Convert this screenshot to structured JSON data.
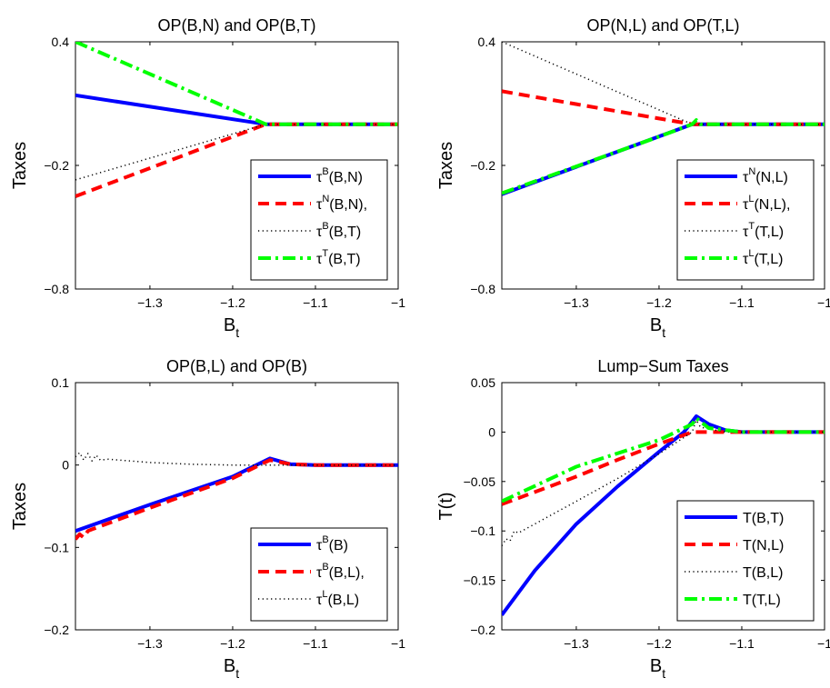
{
  "figure": {
    "background": "#ffffff"
  },
  "chart_data": [
    {
      "type": "line",
      "title": "OP(B,N) and OP(B,T)",
      "xlabel": "B",
      "xlabel_sub": "t",
      "ylabel": "Taxes",
      "xlim": [
        -1.39,
        -1.0
      ],
      "ylim": [
        -0.8,
        0.4
      ],
      "xticks": [
        -1.3,
        -1.2,
        -1.1,
        -1.0
      ],
      "xtick_labels": [
        "−1.3",
        "−1.2",
        "−1.1",
        "−1"
      ],
      "yticks": [
        -0.8,
        -0.2,
        0.4
      ],
      "ytick_labels": [
        "−0.8",
        "−0.2",
        "0.4"
      ],
      "legend_position": "lower-right",
      "series": [
        {
          "name_base": "τ",
          "name_sup": "B",
          "name_rest": "(B,N)",
          "color": "#0000ff",
          "style": "solid",
          "x": [
            -1.39,
            -1.16,
            -1.0
          ],
          "y": [
            0.14,
            0.0,
            0.0
          ]
        },
        {
          "name_base": "τ",
          "name_sup": "N",
          "name_rest": "(B,N),",
          "color": "#ff0000",
          "style": "dashed",
          "x": [
            -1.39,
            -1.16,
            -1.0
          ],
          "y": [
            -0.35,
            0.0,
            0.0
          ]
        },
        {
          "name_base": "τ",
          "name_sup": "B",
          "name_rest": "(B,T)",
          "color": "#000000",
          "style": "dotted",
          "x": [
            -1.39,
            -1.16,
            -1.0
          ],
          "y": [
            -0.27,
            0.0,
            0.0
          ]
        },
        {
          "name_base": "τ",
          "name_sup": "T",
          "name_rest": "(B,T)",
          "color": "#00ff00",
          "style": "dashdot",
          "x": [
            -1.39,
            -1.16,
            -1.0
          ],
          "y": [
            0.4,
            0.0,
            0.0
          ]
        }
      ]
    },
    {
      "type": "line",
      "title": "OP(N,L) and OP(T,L)",
      "xlabel": "B",
      "xlabel_sub": "t",
      "ylabel": "Taxes",
      "xlim": [
        -1.39,
        -1.0
      ],
      "ylim": [
        -0.8,
        0.4
      ],
      "xticks": [
        -1.3,
        -1.2,
        -1.1,
        -1.0
      ],
      "xtick_labels": [
        "−1.3",
        "−1.2",
        "−1.1",
        "−1"
      ],
      "yticks": [
        -0.8,
        -0.2,
        0.4
      ],
      "ytick_labels": [
        "−0.8",
        "−0.2",
        "0.4"
      ],
      "legend_position": "lower-right",
      "series": [
        {
          "name_base": "τ",
          "name_sup": "N",
          "name_rest": "(N,L)",
          "color": "#0000ff",
          "style": "solid",
          "x": [
            -1.39,
            -1.16,
            -1.0
          ],
          "y": [
            -0.34,
            0.0,
            0.0
          ]
        },
        {
          "name_base": "τ",
          "name_sup": "L",
          "name_rest": "(N,L),",
          "color": "#ff0000",
          "style": "dashed",
          "x": [
            -1.39,
            -1.16,
            -1.0
          ],
          "y": [
            0.16,
            0.0,
            0.0
          ]
        },
        {
          "name_base": "τ",
          "name_sup": "T",
          "name_rest": "(T,L)",
          "color": "#000000",
          "style": "dotted",
          "x": [
            -1.39,
            -1.16,
            -1.0
          ],
          "y": [
            0.4,
            0.0,
            0.0
          ]
        },
        {
          "name_base": "τ",
          "name_sup": "L",
          "name_rest": "(T,L)",
          "color": "#00ff00",
          "style": "dashdot",
          "x": [
            -1.39,
            -1.2,
            -1.16,
            -1.155,
            -1.15,
            -1.0
          ],
          "y": [
            -0.335,
            -0.06,
            0.0,
            0.02,
            0.0,
            0.0
          ]
        }
      ]
    },
    {
      "type": "line",
      "title": "OP(B,L) and OP(B)",
      "xlabel": "B",
      "xlabel_sub": "t",
      "ylabel": "Taxes",
      "xlim": [
        -1.39,
        -1.0
      ],
      "ylim": [
        -0.2,
        0.1
      ],
      "xticks": [
        -1.3,
        -1.2,
        -1.1,
        -1.0
      ],
      "xtick_labels": [
        "−1.3",
        "−1.2",
        "−1.1",
        "−1"
      ],
      "yticks": [
        -0.2,
        -0.1,
        0.0,
        0.1
      ],
      "ytick_labels": [
        "−0.2",
        "−0.1",
        "0",
        "0.1"
      ],
      "legend_position": "lower-right",
      "series": [
        {
          "name_base": "τ",
          "name_sup": "B",
          "name_rest": "(B)",
          "color": "#0000ff",
          "style": "solid",
          "x": [
            -1.39,
            -1.3,
            -1.2,
            -1.155,
            -1.13,
            -1.1,
            -1.0
          ],
          "y": [
            -0.08,
            -0.048,
            -0.014,
            0.008,
            0.001,
            0.0,
            0.0
          ]
        },
        {
          "name_base": "τ",
          "name_sup": "B",
          "name_rest": "(B,L),",
          "color": "#ff0000",
          "style": "dashed",
          "x": [
            -1.39,
            -1.385,
            -1.38,
            -1.375,
            -1.37,
            -1.3,
            -1.2,
            -1.155,
            -1.13,
            -1.1,
            -1.0
          ],
          "y": [
            -0.09,
            -0.084,
            -0.088,
            -0.08,
            -0.078,
            -0.052,
            -0.016,
            0.006,
            0.001,
            0.0,
            0.0
          ]
        },
        {
          "name_base": "τ",
          "name_sup": "L",
          "name_rest": "(B,L)",
          "color": "#000000",
          "style": "dotted",
          "x": [
            -1.39,
            -1.385,
            -1.38,
            -1.375,
            -1.37,
            -1.365,
            -1.36,
            -1.35,
            -1.3,
            -1.25,
            -1.2,
            -1.16,
            -1.1,
            -1.0
          ],
          "y": [
            0.01,
            0.015,
            0.006,
            0.014,
            0.005,
            0.012,
            0.006,
            0.007,
            0.003,
            0.001,
            0.0,
            0.0,
            0.0,
            0.0
          ]
        }
      ]
    },
    {
      "type": "line",
      "title": "Lump−Sum Taxes",
      "xlabel": "B",
      "xlabel_sub": "t",
      "ylabel": "T(t)",
      "xlim": [
        -1.39,
        -1.0
      ],
      "ylim": [
        -0.2,
        0.05
      ],
      "xticks": [
        -1.3,
        -1.2,
        -1.1,
        -1.0
      ],
      "xtick_labels": [
        "−1.3",
        "−1.2",
        "−1.1",
        "−1"
      ],
      "yticks": [
        -0.2,
        -0.15,
        -0.1,
        -0.05,
        0.0,
        0.05
      ],
      "ytick_labels": [
        "−0.2",
        "−0.15",
        "−0.1",
        "−0.05",
        "0",
        "0.05"
      ],
      "legend_position": "lower-right",
      "series": [
        {
          "name": "T(B,T)",
          "color": "#0000ff",
          "style": "solid",
          "x": [
            -1.39,
            -1.35,
            -1.3,
            -1.25,
            -1.2,
            -1.17,
            -1.155,
            -1.14,
            -1.12,
            -1.1,
            -1.0
          ],
          "y": [
            -0.185,
            -0.14,
            -0.093,
            -0.055,
            -0.02,
            0.0,
            0.016,
            0.008,
            0.002,
            0.0,
            0.0
          ]
        },
        {
          "name": "T(N,L)",
          "color": "#ff0000",
          "style": "dashed",
          "x": [
            -1.39,
            -1.3,
            -1.25,
            -1.2,
            -1.16,
            -1.1,
            -1.0
          ],
          "y": [
            -0.073,
            -0.045,
            -0.028,
            -0.012,
            0.0,
            0.0,
            0.0
          ]
        },
        {
          "name": "T(B,L)",
          "color": "#000000",
          "style": "dotted",
          "x": [
            -1.39,
            -1.385,
            -1.38,
            -1.375,
            -1.37,
            -1.3,
            -1.25,
            -1.2,
            -1.16,
            -1.155,
            -1.15,
            -1.12,
            -1.1,
            -1.0
          ],
          "y": [
            -0.115,
            -0.108,
            -0.11,
            -0.1,
            -0.102,
            -0.07,
            -0.047,
            -0.022,
            0.0,
            0.012,
            0.005,
            0.0,
            0.0,
            0.0
          ]
        },
        {
          "name": "T(T,L)",
          "color": "#00ff00",
          "style": "dashdot",
          "x": [
            -1.39,
            -1.3,
            -1.2,
            -1.16,
            -1.155,
            -1.14,
            -1.1,
            -1.0
          ],
          "y": [
            -0.07,
            -0.035,
            -0.008,
            0.008,
            0.014,
            0.004,
            0.0,
            0.0
          ]
        }
      ]
    }
  ]
}
